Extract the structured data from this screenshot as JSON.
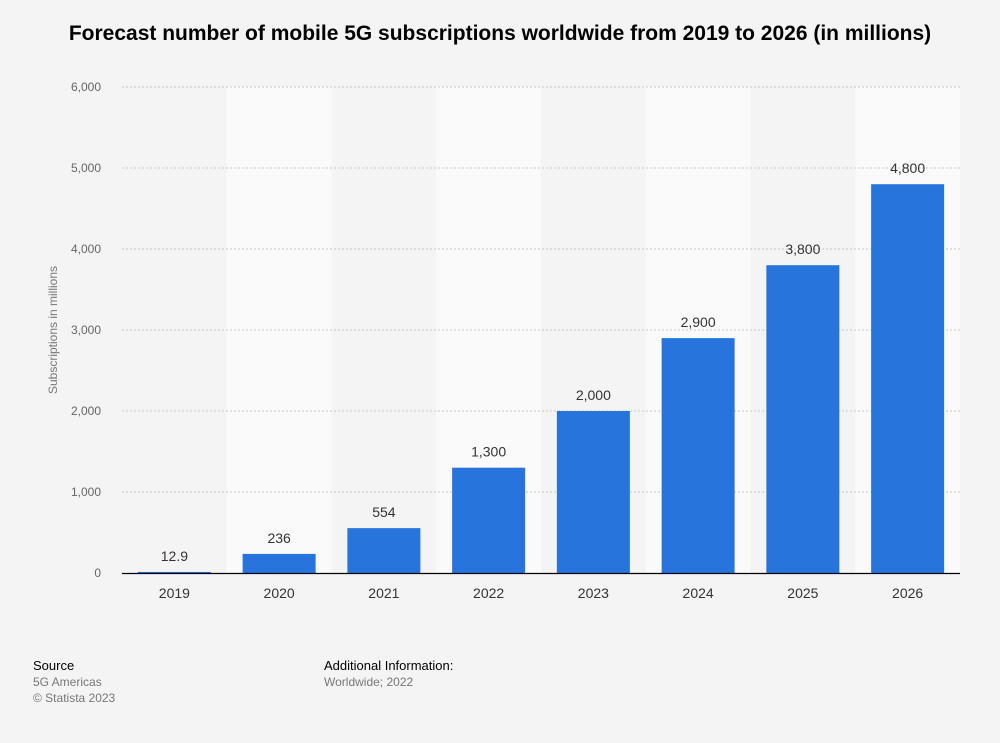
{
  "chart_data": {
    "type": "bar",
    "title": "Forecast number of mobile 5G subscriptions worldwide from 2019 to 2026 (in millions)",
    "xlabel": "",
    "ylabel": "Subscriptions in millions",
    "categories": [
      "2019",
      "2020",
      "2021",
      "2022",
      "2023",
      "2024",
      "2025",
      "2026"
    ],
    "values": [
      12.9,
      236,
      554,
      1300,
      2000,
      2900,
      3800,
      4800
    ],
    "value_labels": [
      "12.9",
      "236",
      "554",
      "1,300",
      "2,000",
      "2,900",
      "3,800",
      "4,800"
    ],
    "ylim": [
      0,
      6000
    ],
    "yticks": [
      0,
      1000,
      2000,
      3000,
      4000,
      5000,
      6000
    ],
    "ytick_labels": [
      "0",
      "1,000",
      "2,000",
      "3,000",
      "4,000",
      "5,000",
      "6,000"
    ],
    "grid": true,
    "legend": "none",
    "colors": {
      "bar": "#2775dc",
      "band": "#fafafa",
      "grid": "#c8c8c8",
      "axis": "#000000",
      "background": "#f4f4f4"
    }
  },
  "footer": {
    "source_heading": "Source",
    "source_line1": "5G Americas",
    "source_line2": "© Statista 2023",
    "info_heading": "Additional Information:",
    "info_line1": "Worldwide; 2022"
  }
}
